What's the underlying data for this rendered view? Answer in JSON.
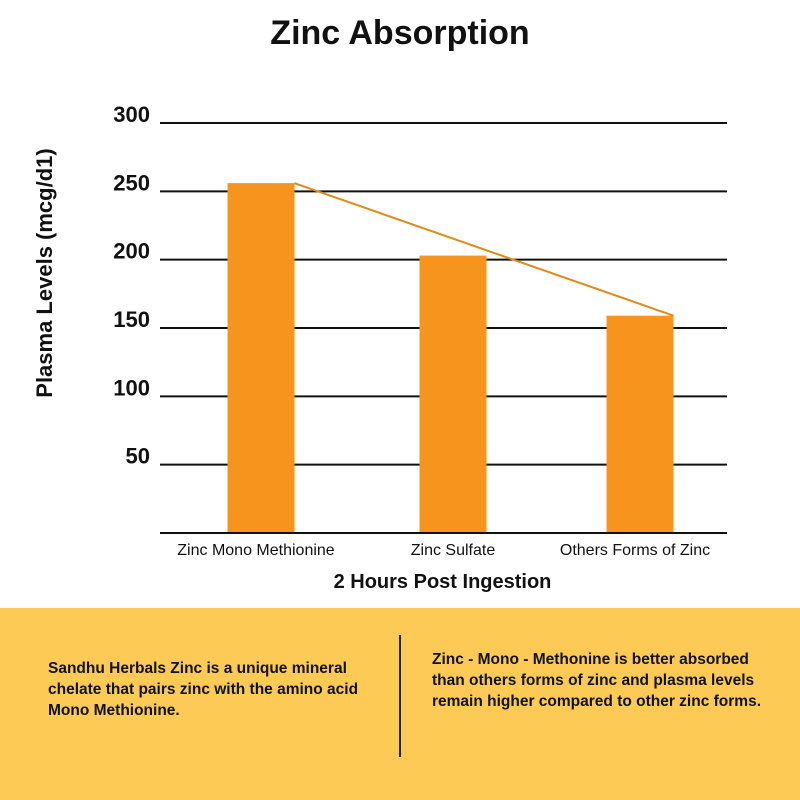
{
  "chart_data": {
    "type": "bar",
    "title": "Zinc Absorption",
    "xlabel": "2 Hours Post Ingestion",
    "ylabel": "Plasma Levels (mcg/d1)",
    "categories": [
      "Zinc Mono Methionine",
      "Zinc Sulfate",
      "Others Forms of Zinc"
    ],
    "values": [
      256,
      203,
      159
    ],
    "ylim": [
      0,
      300
    ],
    "yticks": [
      50,
      100,
      150,
      200,
      250,
      300
    ],
    "grid": true,
    "trend_line": true,
    "colors": {
      "bar": "#f7941d",
      "line": "#e08a1a",
      "grid": "#111111"
    }
  },
  "panel": {
    "left_text": "Sandhu Herbals Zinc is a unique mineral chelate that pairs zinc with the amino acid Mono Methionine.",
    "right_text": "Zinc - Mono - Methonine is better absorbed than others forms of zinc and plasma levels remain higher compared to other zinc forms.",
    "background": "#fdcb55"
  }
}
